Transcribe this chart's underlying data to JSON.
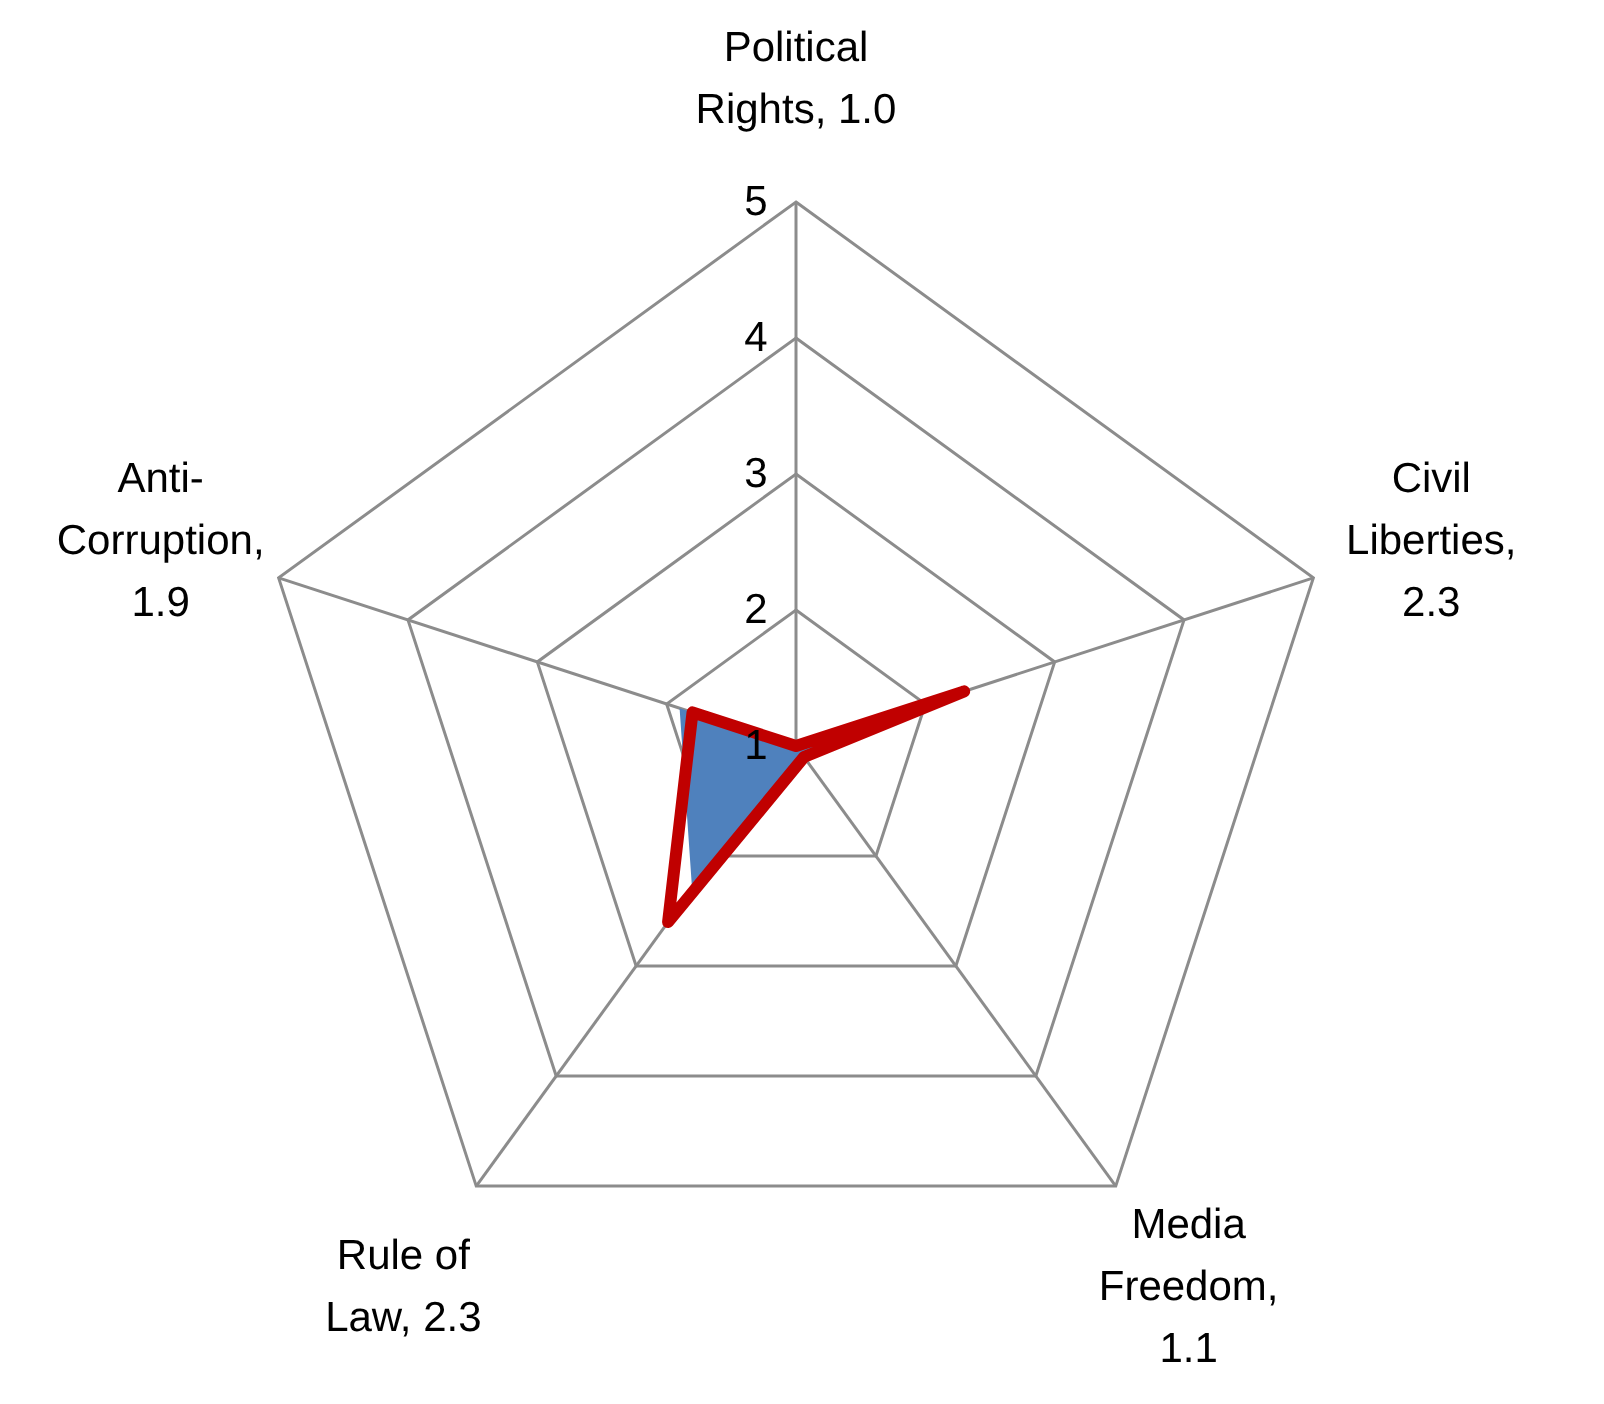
{
  "chart_data": {
    "type": "radar",
    "categories": [
      "Political Rights, 1.0",
      "Civil Liberties, 2.3",
      "Media Freedom, 1.1",
      "Rule of Law, 2.3",
      "Anti-Corruption, 1.9"
    ],
    "series": [
      {
        "type": "area",
        "color": "#4f81bd",
        "values": [
          1.0,
          2.3,
          1.1,
          2.3,
          1.9
        ]
      },
      {
        "color": "#c00000",
        "values": [
          1.0,
          2.3,
          1.1,
          2.6,
          1.8
        ]
      }
    ],
    "ylim": [
      1,
      5
    ],
    "yticks": [
      1,
      2,
      3,
      4,
      5
    ],
    "grid": true
  }
}
